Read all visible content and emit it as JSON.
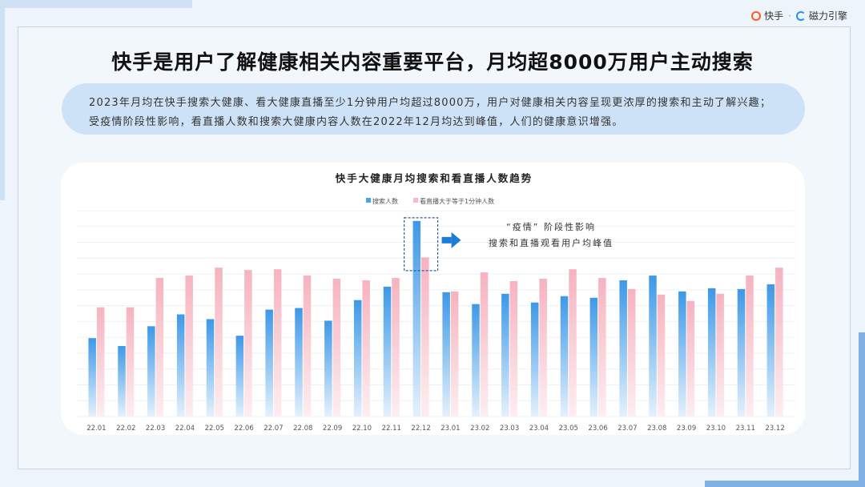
{
  "logo": {
    "brand1": "快手",
    "separator": "·",
    "brand2": "磁力引擎"
  },
  "headline": "快手是用户了解健康相关内容重要平台，月均超8000万用户主动搜索",
  "summary": "2023年月均在快手搜索大健康、看大健康直播至少1分钟用户均超过8000万，用户对健康相关内容呈现更浓厚的搜索和主动了解兴趣；受疫情阶段性影响，看直播人数和搜索大健康内容人数在2022年12月均达到峰值，人们的健康意识增强。",
  "colors": {
    "series1": "#4da3ea",
    "series2": "#f7bcc6",
    "highlight_border": "#2b5f95",
    "arrow": "#1d7cd6"
  },
  "chart_data": {
    "type": "bar",
    "title": "快手大健康月均搜索和看直播人数趋势",
    "categories": [
      "22.01",
      "22.02",
      "22.03",
      "22.04",
      "22.05",
      "22.06",
      "22.07",
      "22.08",
      "22.09",
      "22.10",
      "22.11",
      "22.12",
      "23.01",
      "23.02",
      "23.03",
      "23.04",
      "23.05",
      "23.06",
      "23.07",
      "23.08",
      "23.09",
      "23.10",
      "23.11",
      "23.12"
    ],
    "series": [
      {
        "name": "搜索人数",
        "values": [
          99,
          89,
          114,
          129,
          123,
          102,
          135,
          137,
          121,
          147,
          164,
          247,
          157,
          142,
          155,
          144,
          152,
          150,
          172,
          178,
          158,
          162,
          161,
          167
        ]
      },
      {
        "name": "看直播大于等于1分钟人数",
        "values": [
          138,
          138,
          175,
          178,
          188,
          185,
          186,
          178,
          174,
          172,
          175,
          201,
          158,
          182,
          171,
          174,
          186,
          175,
          161,
          154,
          146,
          155,
          178,
          188
        ]
      }
    ],
    "ylim": [
      0,
      260
    ],
    "grid": true,
    "legend": "top-center",
    "annotation": {
      "line1": "“疫情” 阶段性影响",
      "line2": "搜索和直播观看用户均峰值",
      "target": "22.12"
    }
  }
}
